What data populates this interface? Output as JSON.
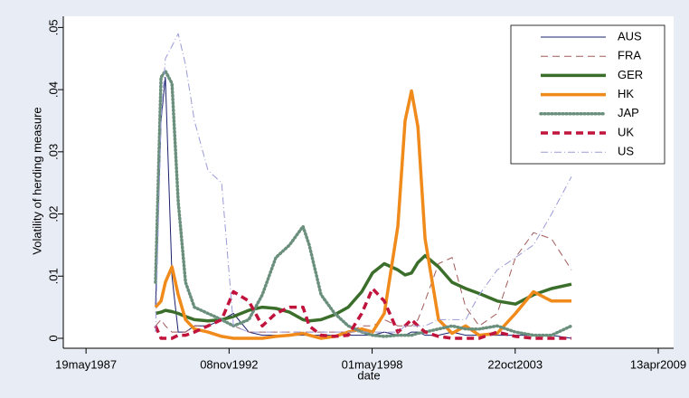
{
  "chart_data": {
    "type": "line",
    "x_label": "date",
    "y_label": "Volatility of herding measure",
    "x": [
      "1990-01-15",
      "1990-04-01",
      "1990-06-01",
      "1990-09-01",
      "1990-11-28",
      "1991-03-10",
      "1991-07-12",
      "1992-01-18",
      "1992-07-26",
      "1993-01-08",
      "1993-08-10",
      "1994-02-16",
      "1994-08-24",
      "1995-03-03",
      "1995-09-07",
      "1995-12-04",
      "1996-05-17",
      "1996-11-23",
      "1997-05-31",
      "1997-12-07",
      "1998-05-06",
      "1998-10-18",
      "1999-04-25",
      "1999-08-04",
      "1999-11-02",
      "2000-01-31",
      "2000-05-10",
      "2000-11-14",
      "2001-05-23",
      "2001-11-29",
      "2002-06-06",
      "2003-02-13",
      "2003-10-26",
      "2004-07-04",
      "2005-03-14",
      "2005-12-16"
    ],
    "xlim": [
      "1986-07-05",
      "2009-11-14"
    ],
    "xticks": [
      {
        "value": "1987-05-19",
        "label": "19may1987"
      },
      {
        "value": "1992-11-08",
        "label": "08nov1992"
      },
      {
        "value": "1998-05-01",
        "label": "01may1998"
      },
      {
        "value": "2003-10-22",
        "label": "22oct2003"
      },
      {
        "value": "2009-04-13",
        "label": "13apr2009"
      }
    ],
    "ylim": [
      -0.0016,
      0.0518
    ],
    "yticks": [
      0,
      {
        "value": 0.01,
        "label": ".01"
      },
      {
        "value": 0.02,
        "label": ".02"
      },
      {
        "value": 0.03,
        "label": ".03"
      },
      {
        "value": 0.04,
        "label": ".04"
      },
      {
        "value": 0.05,
        "label": ".05"
      }
    ],
    "legend": "top-right",
    "series": [
      {
        "name": "AUS",
        "color": "#1a1f6e",
        "style": "solid",
        "width": 1,
        "values": [
          0.005,
          0.035,
          0.042,
          0.01,
          0.001,
          0.001,
          0.002,
          0.002,
          0.003,
          0.004,
          0.001,
          0.0005,
          0.0005,
          0.0005,
          0.0005,
          0.0005,
          0.0005,
          0.0005,
          0.0005,
          0.0005,
          0.0005,
          0.001,
          0.0005,
          0.0005,
          0.001,
          0.001,
          0.0005,
          0.0005,
          0.001,
          0.0005,
          0.0005,
          0.0005,
          0.0005,
          0.0005,
          0.0005,
          0
        ]
      },
      {
        "name": "FRA",
        "color": "#a05a5a",
        "style": "dash",
        "width": 1,
        "values": [
          0.002,
          0.003,
          0.002,
          0.001,
          0.001,
          0.001,
          0.002,
          0.002,
          0.003,
          0.002,
          0.001,
          0.001,
          0.001,
          0.001,
          0.001,
          0.001,
          0.001,
          0.001,
          0.001,
          0.002,
          0.002,
          0.003,
          0.002,
          0.002,
          0.002,
          0.003,
          0.006,
          0.012,
          0.013,
          0.005,
          0.002,
          0.004,
          0.013,
          0.017,
          0.016,
          0.011
        ]
      },
      {
        "name": "GER",
        "color": "#3b6e2a",
        "style": "solid",
        "width": 3.5,
        "values": [
          0.004,
          0.0042,
          0.0045,
          0.0043,
          0.004,
          0.0035,
          0.003,
          0.0028,
          0.003,
          0.0035,
          0.0045,
          0.005,
          0.0048,
          0.0042,
          0.003,
          0.0028,
          0.003,
          0.0038,
          0.005,
          0.0075,
          0.0105,
          0.012,
          0.011,
          0.0102,
          0.0105,
          0.0122,
          0.0133,
          0.0115,
          0.009,
          0.008,
          0.0072,
          0.006,
          0.0055,
          0.007,
          0.008,
          0.0087
        ]
      },
      {
        "name": "HK",
        "color": "#f08a1a",
        "style": "solid",
        "width": 3.5,
        "values": [
          0.005,
          0.006,
          0.009,
          0.0115,
          0.007,
          0.003,
          0.0015,
          0.001,
          0.0003,
          0,
          0,
          0,
          0.0003,
          0.0005,
          0.0008,
          0.0005,
          0,
          0.0003,
          0.001,
          0.0015,
          0.001,
          0.004,
          0.018,
          0.035,
          0.0398,
          0.034,
          0.016,
          0.003,
          0.0008,
          0.002,
          0.0005,
          0.0008,
          0.004,
          0.0075,
          0.006,
          0.006
        ]
      },
      {
        "name": "JAP",
        "color": "#6b8f7d",
        "style": "dot",
        "width": 3.5,
        "values": [
          0.009,
          0.042,
          0.043,
          0.041,
          0.022,
          0.009,
          0.005,
          0.004,
          0.003,
          0.002,
          0.003,
          0.007,
          0.013,
          0.015,
          0.018,
          0.015,
          0.007,
          0.004,
          0.002,
          0.001,
          0.0005,
          0.0003,
          0.0005,
          0.0005,
          0.0005,
          0.0008,
          0.001,
          0.0015,
          0.002,
          0.0015,
          0.0015,
          0.002,
          0.001,
          0.0005,
          0.0005,
          0.002
        ]
      },
      {
        "name": "UK",
        "color": "#c0143c",
        "style": "dash",
        "width": 3.5,
        "values": [
          0.002,
          0,
          0,
          0,
          0.0005,
          0.0005,
          0.001,
          0.002,
          0.003,
          0.0075,
          0.006,
          0.002,
          0.004,
          0.005,
          0.005,
          0.002,
          0.0005,
          0.0003,
          0.0005,
          0.004,
          0.008,
          0.006,
          0.001,
          0.002,
          0.003,
          0.002,
          0.001,
          0.0003,
          0,
          0,
          0,
          0.001,
          0.0003,
          0,
          0,
          0
        ]
      },
      {
        "name": "US",
        "color": "#9a9ad6",
        "style": "dashdot",
        "width": 1,
        "values": [
          0.001,
          0.035,
          0.045,
          0.047,
          0.049,
          0.044,
          0.035,
          0.027,
          0.025,
          0.002,
          0.001,
          0.001,
          0.001,
          0.001,
          0.001,
          0.001,
          0.001,
          0.001,
          0.001,
          0.001,
          0.001,
          0.001,
          0.001,
          0.002,
          0.002,
          0.002,
          0.002,
          0.003,
          0.003,
          0.003,
          0.007,
          0.011,
          0.013,
          0.015,
          0.02,
          0.026
        ]
      }
    ]
  }
}
